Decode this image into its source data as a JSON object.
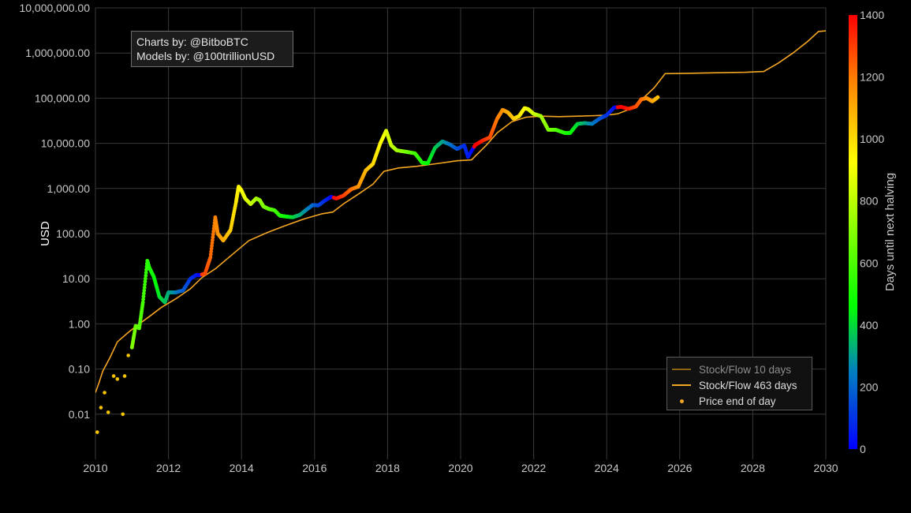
{
  "chart_data": {
    "type": "scatter",
    "title": "",
    "xlabel": "",
    "ylabel": "USD",
    "y_scale": "log",
    "xlim": [
      2010,
      2030
    ],
    "ylim": [
      0.001,
      10000000
    ],
    "x_ticks": [
      "2010",
      "2012",
      "2014",
      "2016",
      "2018",
      "2020",
      "2022",
      "2024",
      "2026",
      "2028",
      "2030"
    ],
    "y_ticks": [
      {
        "value": 0.01,
        "label": "0.01"
      },
      {
        "value": 0.1,
        "label": "0.10"
      },
      {
        "value": 1,
        "label": "1.00"
      },
      {
        "value": 10,
        "label": "10.00"
      },
      {
        "value": 100,
        "label": "100.00"
      },
      {
        "value": 1000,
        "label": "1,000.00"
      },
      {
        "value": 10000,
        "label": "10,000.00"
      },
      {
        "value": 100000,
        "label": "100,000.00"
      },
      {
        "value": 1000000,
        "label": "1,000,000.00"
      },
      {
        "value": 10000000,
        "label": "10,000,000.00"
      }
    ],
    "grid": true,
    "legend_position": "bottom-right",
    "colorbar": {
      "title": "Days until next halving",
      "min": 0,
      "max": 1400,
      "ticks": [
        0,
        200,
        400,
        600,
        800,
        1000,
        1200,
        1400
      ],
      "colors": [
        "#0000ff",
        "#00ff00",
        "#ffff00",
        "#ff0000"
      ]
    },
    "halvings": [
      2012.91,
      2016.52,
      2020.36,
      2024.3,
      2028.3
    ],
    "series": [
      {
        "name": "Stock/Flow 10 days",
        "kind": "line",
        "color": "#8c6414",
        "x": [],
        "y": []
      },
      {
        "name": "Stock/Flow 463 days",
        "kind": "line",
        "color": "#f5a623",
        "x": [
          2010.0,
          2010.1,
          2010.2,
          2010.4,
          2010.6,
          2010.9,
          2011.2,
          2011.5,
          2011.8,
          2012.2,
          2012.6,
          2012.91,
          2013.3,
          2013.7,
          2014.2,
          2014.7,
          2015.2,
          2015.7,
          2016.2,
          2016.5,
          2016.8,
          2017.2,
          2017.6,
          2017.9,
          2018.3,
          2018.8,
          2019.4,
          2019.9,
          2020.3,
          2020.4,
          2020.7,
          2021.0,
          2021.4,
          2021.8,
          2022.2,
          2022.7,
          2023.2,
          2023.7,
          2024.0,
          2024.3,
          2024.7,
          2025.0,
          2025.3,
          2025.6,
          2026.2,
          2027.0,
          2027.8,
          2028.3,
          2028.7,
          2029.1,
          2029.5,
          2029.8,
          2030.0
        ],
        "y": [
          0.03,
          0.05,
          0.09,
          0.18,
          0.4,
          0.65,
          1.0,
          1.5,
          2.3,
          3.6,
          6.0,
          10.5,
          17,
          32,
          70,
          105,
          150,
          210,
          275,
          300,
          460,
          750,
          1250,
          2400,
          2850,
          3100,
          3600,
          4100,
          4300,
          5200,
          9000,
          17000,
          30000,
          38000,
          40000,
          39000,
          40000,
          41000,
          42000,
          45000,
          60000,
          100000,
          170000,
          350000,
          355000,
          365000,
          375000,
          390000,
          600000,
          1000000,
          1800000,
          3000000,
          3100000
        ]
      },
      {
        "name": "Price end of day",
        "kind": "points",
        "color": "#f5a623",
        "x": [
          2010.05,
          2010.15,
          2010.25,
          2010.35,
          2010.5,
          2010.6,
          2010.75,
          2010.8,
          2010.9,
          2011.0,
          2011.1,
          2011.2,
          2011.3,
          2011.42,
          2011.47,
          2011.6,
          2011.75,
          2011.9,
          2012.0,
          2012.2,
          2012.4,
          2012.6,
          2012.75,
          2012.85,
          2013.0,
          2013.15,
          2013.28,
          2013.35,
          2013.5,
          2013.7,
          2013.85,
          2013.92,
          2014.0,
          2014.1,
          2014.25,
          2014.4,
          2014.5,
          2014.6,
          2014.75,
          2014.9,
          2015.05,
          2015.2,
          2015.4,
          2015.6,
          2015.8,
          2015.95,
          2016.1,
          2016.3,
          2016.45,
          2016.6,
          2016.8,
          2017.0,
          2017.2,
          2017.4,
          2017.6,
          2017.8,
          2017.96,
          2018.1,
          2018.25,
          2018.5,
          2018.75,
          2018.95,
          2019.1,
          2019.3,
          2019.5,
          2019.7,
          2019.9,
          2020.1,
          2020.2,
          2020.4,
          2020.6,
          2020.8,
          2021.0,
          2021.15,
          2021.3,
          2021.45,
          2021.6,
          2021.75,
          2021.85,
          2022.0,
          2022.2,
          2022.4,
          2022.6,
          2022.85,
          2023.0,
          2023.2,
          2023.4,
          2023.6,
          2023.8,
          2024.0,
          2024.2,
          2024.4,
          2024.6,
          2024.8,
          2024.95,
          2025.1,
          2025.25,
          2025.4
        ],
        "y": [
          0.004,
          0.014,
          0.03,
          0.011,
          0.07,
          0.06,
          0.01,
          0.07,
          0.2,
          0.3,
          0.9,
          0.8,
          3,
          25,
          18,
          11,
          4,
          3,
          5,
          5,
          5.5,
          10,
          12,
          12,
          13,
          30,
          230,
          100,
          70,
          120,
          500,
          1100,
          900,
          600,
          450,
          600,
          550,
          400,
          350,
          330,
          250,
          240,
          230,
          260,
          350,
          430,
          420,
          550,
          650,
          600,
          700,
          960,
          1100,
          2500,
          3500,
          10000,
          19000,
          9000,
          7000,
          6500,
          6000,
          3700,
          3600,
          8000,
          11000,
          9500,
          7500,
          9000,
          5000,
          9200,
          11500,
          13500,
          35000,
          55000,
          48000,
          35000,
          40000,
          60000,
          57000,
          45000,
          40000,
          20000,
          20000,
          17000,
          17000,
          27000,
          28000,
          27000,
          35000,
          42000,
          62000,
          64000,
          58000,
          65000,
          95000,
          100000,
          85000,
          105000
        ]
      }
    ]
  },
  "credit": {
    "line1": "Charts by: @BitboBTC",
    "line2": "Models by: @100trillionUSD"
  }
}
